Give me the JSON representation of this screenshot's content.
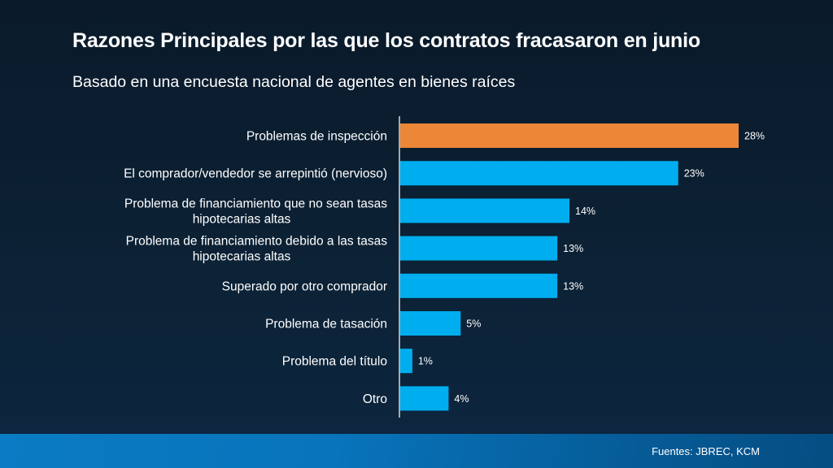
{
  "header": {
    "title": "Razones Principales por las que los contratos fracasaron en junio",
    "subtitle": "Basado en una encuesta nacional de agentes en bienes raíces"
  },
  "footer": {
    "source": "Fuentes: JBREC, KCM"
  },
  "colors": {
    "highlight": "#ec8738",
    "bar": "#00aeef",
    "axis": "#d9d9d9",
    "text": "#ffffff"
  },
  "chart_data": {
    "type": "bar",
    "orientation": "horizontal",
    "title": "Razones Principales por las que los contratos fracasaron en junio",
    "subtitle": "Basado en una encuesta nacional de agentes en bienes raíces",
    "categories": [
      [
        "Problemas de inspección"
      ],
      [
        "El comprador/vendedor se arrepintió (nervioso)"
      ],
      [
        "Problema de financiamiento que no sean tasas",
        "hipotecarias altas"
      ],
      [
        "Problema de financiamiento debido a las tasas",
        "hipotecarias altas"
      ],
      [
        "Superado por otro comprador"
      ],
      [
        "Problema de tasación"
      ],
      [
        "Problema del título"
      ],
      [
        "Otro"
      ]
    ],
    "values": [
      28,
      23,
      14,
      13,
      13,
      5,
      1,
      4
    ],
    "value_labels": [
      "28%",
      "23%",
      "14%",
      "13%",
      "13%",
      "5%",
      "1%",
      "4%"
    ],
    "highlight_index": 0,
    "unit": "%",
    "xlabel": "",
    "ylabel": "",
    "xlim": [
      0,
      28
    ],
    "grid": false,
    "legend": "none"
  }
}
